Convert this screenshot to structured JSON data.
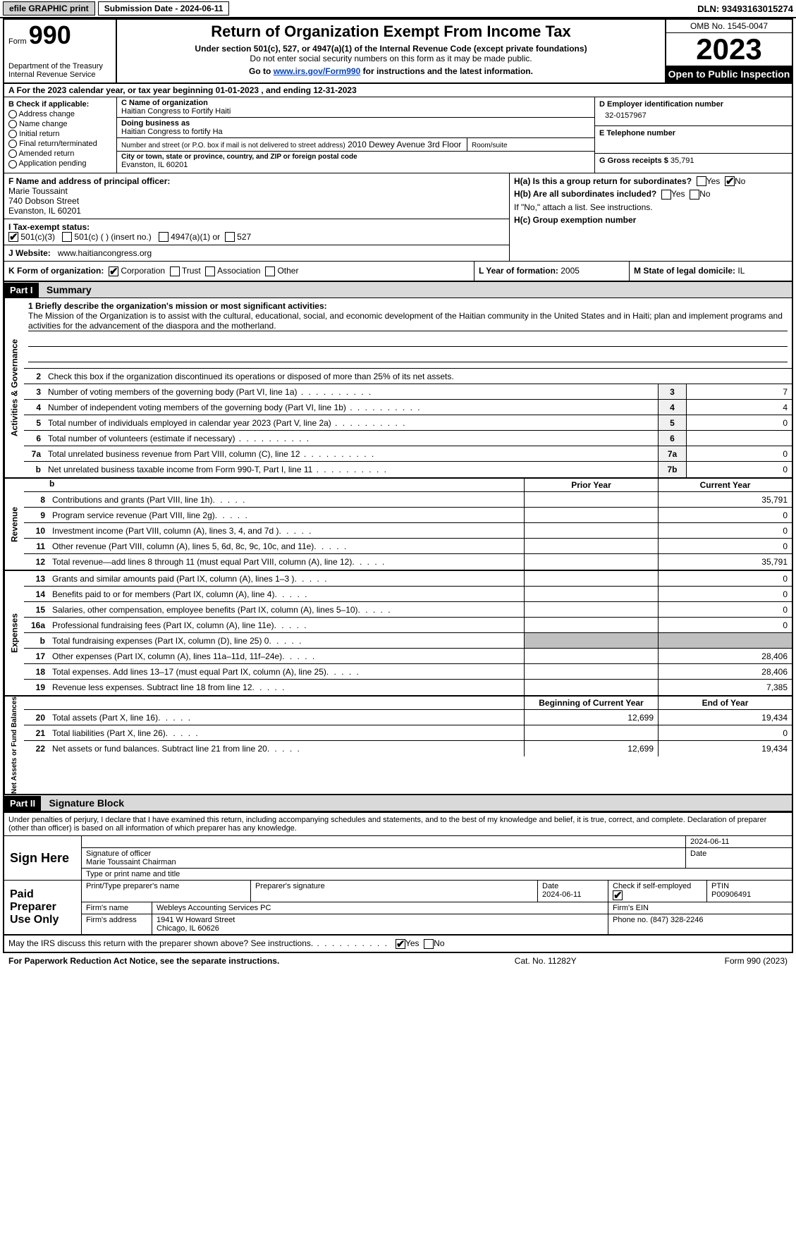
{
  "topbar": {
    "efile": "efile GRAPHIC print",
    "submission": "Submission Date - 2024-06-11",
    "dln": "DLN: 93493163015274"
  },
  "header": {
    "form_label": "Form",
    "form_number": "990",
    "title": "Return of Organization Exempt From Income Tax",
    "sub1": "Under section 501(c), 527, or 4947(a)(1) of the Internal Revenue Code (except private foundations)",
    "sub2": "Do not enter social security numbers on this form as it may be made public.",
    "sub3_pre": "Go to ",
    "sub3_link": "www.irs.gov/Form990",
    "sub3_post": " for instructions and the latest information.",
    "dept": "Department of the Treasury\nInternal Revenue Service",
    "omb": "OMB No. 1545-0047",
    "year": "2023",
    "inspect": "Open to Public Inspection"
  },
  "row_a": "A For the 2023 calendar year, or tax year beginning 01-01-2023   , and ending 12-31-2023",
  "section_b": {
    "b_label": "B Check if applicable:",
    "checks": [
      "Address change",
      "Name change",
      "Initial return",
      "Final return/terminated",
      "Amended return",
      "Application pending"
    ],
    "c_label": "C Name of organization",
    "c_name": "Haitian Congress to Fortify Haiti",
    "dba_label": "Doing business as",
    "dba": "Haitian Congress to fortify Ha",
    "street_label": "Number and street (or P.O. box if mail is not delivered to street address)",
    "street": "2010 Dewey Avenue 3rd Floor",
    "room_label": "Room/suite",
    "city_label": "City or town, state or province, country, and ZIP or foreign postal code",
    "city": "Evanston, IL  60201",
    "d_label": "D Employer identification number",
    "d_ein": "32-0157967",
    "e_label": "E Telephone number",
    "g_label": "G Gross receipts $",
    "g_val": "35,791"
  },
  "section_f": {
    "f_label": "F  Name and address of principal officer:",
    "f_name": "Marie Toussaint",
    "f_addr1": "740 Dobson Street",
    "f_addr2": "Evanston, IL  60201",
    "i_label": "I   Tax-exempt status:",
    "i_501c3": "501(c)(3)",
    "i_501c": "501(c) (  ) (insert no.)",
    "i_4947": "4947(a)(1) or",
    "i_527": "527",
    "j_label": "J   Website:",
    "j_url": "www.haitiancongress.org",
    "ha_label": "H(a)  Is this a group return for subordinates?",
    "hb_label": "H(b)  Are all subordinates included?",
    "hb_note": "If \"No,\" attach a list. See instructions.",
    "hc_label": "H(c)  Group exemption number"
  },
  "row_k": {
    "k_label": "K Form of organization:",
    "k_corp": "Corporation",
    "k_trust": "Trust",
    "k_assoc": "Association",
    "k_other": "Other",
    "l_label": "L Year of formation: ",
    "l_val": "2005",
    "m_label": "M State of legal domicile: ",
    "m_val": "IL"
  },
  "part1": {
    "header": "Part I",
    "title": "Summary",
    "q1_label": "1  Briefly describe the organization's mission or most significant activities:",
    "q1_text": "The Mission of the Organization is to assist with the cultural, educational, social, and economic development of the Haitian community in the United States and in Haiti; plan and implement programs and activities for the advancement of the diaspora and the motherland.",
    "q2": "Check this box      if the organization discontinued its operations or disposed of more than 25% of its net assets.",
    "rows_gov": [
      {
        "n": "3",
        "d": "Number of voting members of the governing body (Part VI, line 1a)",
        "box": "3",
        "v": "7"
      },
      {
        "n": "4",
        "d": "Number of independent voting members of the governing body (Part VI, line 1b)",
        "box": "4",
        "v": "4"
      },
      {
        "n": "5",
        "d": "Total number of individuals employed in calendar year 2023 (Part V, line 2a)",
        "box": "5",
        "v": "0"
      },
      {
        "n": "6",
        "d": "Total number of volunteers (estimate if necessary)",
        "box": "6",
        "v": ""
      },
      {
        "n": "7a",
        "d": "Total unrelated business revenue from Part VIII, column (C), line 12",
        "box": "7a",
        "v": "0"
      },
      {
        "n": "b",
        "d": "Net unrelated business taxable income from Form 990-T, Part I, line 11",
        "box": "7b",
        "v": "0"
      }
    ],
    "col_prior": "Prior Year",
    "col_current": "Current Year",
    "rows_rev": [
      {
        "n": "8",
        "d": "Contributions and grants (Part VIII, line 1h)",
        "p": "",
        "c": "35,791"
      },
      {
        "n": "9",
        "d": "Program service revenue (Part VIII, line 2g)",
        "p": "",
        "c": "0"
      },
      {
        "n": "10",
        "d": "Investment income (Part VIII, column (A), lines 3, 4, and 7d )",
        "p": "",
        "c": "0"
      },
      {
        "n": "11",
        "d": "Other revenue (Part VIII, column (A), lines 5, 6d, 8c, 9c, 10c, and 11e)",
        "p": "",
        "c": "0"
      },
      {
        "n": "12",
        "d": "Total revenue—add lines 8 through 11 (must equal Part VIII, column (A), line 12)",
        "p": "",
        "c": "35,791"
      }
    ],
    "rows_exp": [
      {
        "n": "13",
        "d": "Grants and similar amounts paid (Part IX, column (A), lines 1–3 )",
        "p": "",
        "c": "0"
      },
      {
        "n": "14",
        "d": "Benefits paid to or for members (Part IX, column (A), line 4)",
        "p": "",
        "c": "0"
      },
      {
        "n": "15",
        "d": "Salaries, other compensation, employee benefits (Part IX, column (A), lines 5–10)",
        "p": "",
        "c": "0"
      },
      {
        "n": "16a",
        "d": "Professional fundraising fees (Part IX, column (A), line 11e)",
        "p": "",
        "c": "0"
      },
      {
        "n": "b",
        "d": "Total fundraising expenses (Part IX, column (D), line 25) 0",
        "p": "shade",
        "c": "shade"
      },
      {
        "n": "17",
        "d": "Other expenses (Part IX, column (A), lines 11a–11d, 11f–24e)",
        "p": "",
        "c": "28,406"
      },
      {
        "n": "18",
        "d": "Total expenses. Add lines 13–17 (must equal Part IX, column (A), line 25)",
        "p": "",
        "c": "28,406"
      },
      {
        "n": "19",
        "d": "Revenue less expenses. Subtract line 18 from line 12",
        "p": "",
        "c": "7,385"
      }
    ],
    "col_begin": "Beginning of Current Year",
    "col_end": "End of Year",
    "rows_net": [
      {
        "n": "20",
        "d": "Total assets (Part X, line 16)",
        "p": "12,699",
        "c": "19,434"
      },
      {
        "n": "21",
        "d": "Total liabilities (Part X, line 26)",
        "p": "",
        "c": "0"
      },
      {
        "n": "22",
        "d": "Net assets or fund balances. Subtract line 21 from line 20",
        "p": "12,699",
        "c": "19,434"
      }
    ],
    "side_gov": "Activities & Governance",
    "side_rev": "Revenue",
    "side_exp": "Expenses",
    "side_net": "Net Assets or Fund Balances"
  },
  "part2": {
    "header": "Part II",
    "title": "Signature Block",
    "intro": "Under penalties of perjury, I declare that I have examined this return, including accompanying schedules and statements, and to the best of my knowledge and belief, it is true, correct, and complete. Declaration of preparer (other than officer) is based on all information of which preparer has any knowledge.",
    "sign_here": "Sign Here",
    "sig_officer_label": "Signature of officer",
    "sig_name": "Marie Toussaint  Chairman",
    "sig_type_label": "Type or print name and title",
    "sig_date_label": "Date",
    "sig_date": "2024-06-11",
    "paid": "Paid Preparer Use Only",
    "prep_name_label": "Print/Type preparer's name",
    "prep_sig_label": "Preparer's signature",
    "prep_date_label": "Date",
    "prep_date": "2024-06-11",
    "prep_check_label": "Check        if self-employed",
    "ptin_label": "PTIN",
    "ptin": "P00906491",
    "firm_name_label": "Firm's name",
    "firm_name": "Webleys Accounting Services PC",
    "firm_ein_label": "Firm's EIN",
    "firm_addr_label": "Firm's address",
    "firm_addr1": "1941 W Howard Street",
    "firm_addr2": "Chicago, IL  60626",
    "phone_label": "Phone no.",
    "phone": "(847) 328-2246",
    "may_irs": "May the IRS discuss this return with the preparer shown above? See instructions."
  },
  "footer": {
    "f1": "For Paperwork Reduction Act Notice, see the separate instructions.",
    "f2": "Cat. No. 11282Y",
    "f3": "Form 990 (2023)"
  }
}
